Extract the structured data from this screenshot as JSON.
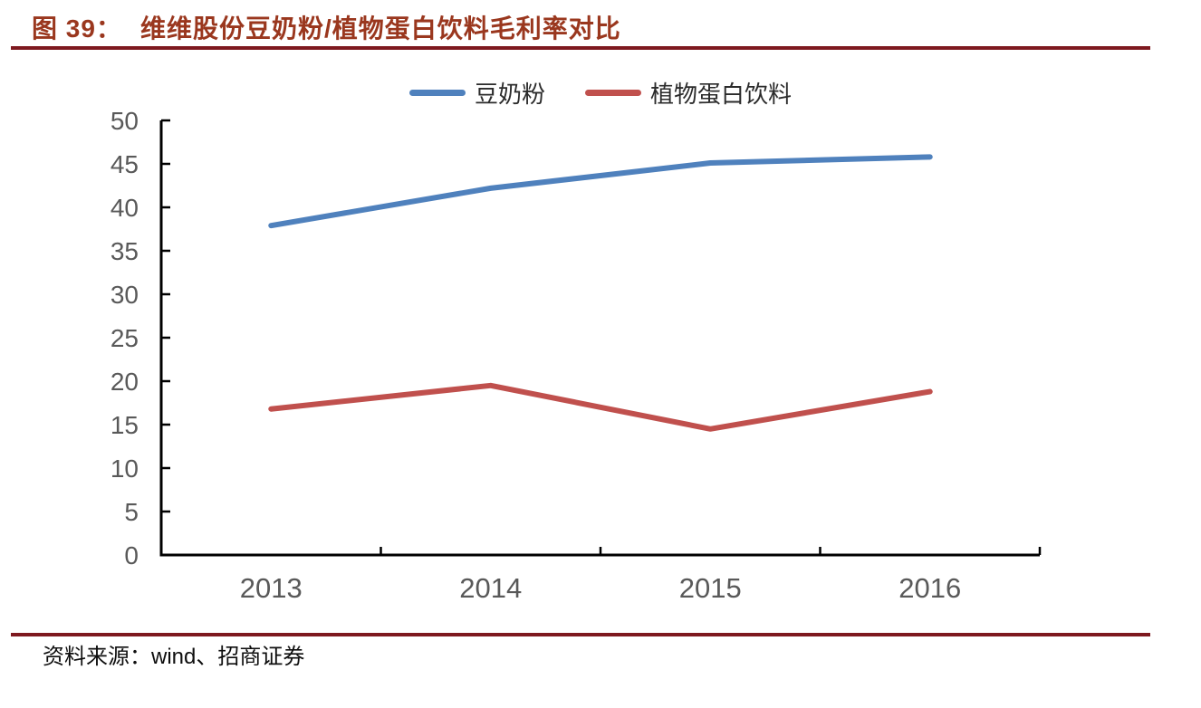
{
  "figure": {
    "label": "图 39：",
    "title": "维维股份豆奶粉/植物蛋白饮料毛利率对比",
    "title_color": "#9A371E",
    "rule_color": "#7E191F"
  },
  "footer": {
    "source_label": "资料来源：",
    "source_text": "wind、招商证券"
  },
  "chart_data": {
    "type": "line",
    "title": "维维股份豆奶粉/植物蛋白饮料毛利率对比",
    "categories": [
      "2013",
      "2014",
      "2015",
      "2016"
    ],
    "series": [
      {
        "name": "豆奶粉",
        "color": "#4F81BD",
        "values": [
          37.9,
          42.2,
          45.1,
          45.8
        ]
      },
      {
        "name": "植物蛋白饮料",
        "color": "#C0504D",
        "values": [
          16.8,
          19.5,
          14.5,
          18.8
        ]
      }
    ],
    "xlabel": "",
    "ylabel": "",
    "ylim": [
      0,
      50
    ],
    "yticks": [
      0,
      5,
      10,
      15,
      20,
      25,
      30,
      35,
      40,
      45,
      50
    ],
    "grid": false,
    "legend_position": "top",
    "axis_color": "#000000",
    "tick_label_color": "#595959"
  }
}
